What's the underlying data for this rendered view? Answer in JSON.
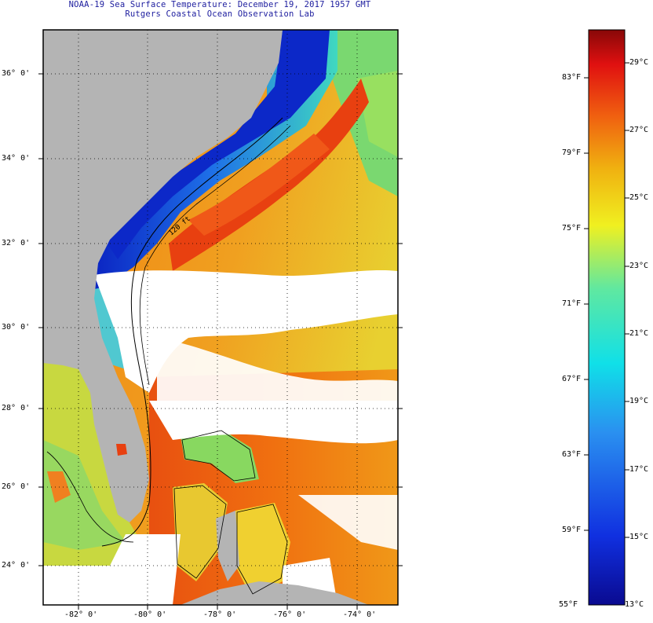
{
  "header": {
    "title_line1": "NOAA-19 Sea Surface Temperature:  December 19, 2017 1957 GMT",
    "title_line2": "Rutgers Coastal Ocean Observation Lab"
  },
  "map": {
    "lat_labels": [
      "36° 0'",
      "34° 0'",
      "32° 0'",
      "30° 0'",
      "28° 0'",
      "26° 0'",
      "24° 0'"
    ],
    "lon_labels": [
      "-82° 0'",
      "-80° 0'",
      "-78° 0'",
      "-76° 0'",
      "-74° 0'"
    ],
    "contour_label": "120 ft",
    "colors": {
      "land": "#b4b4b4",
      "cloud": "#ffffff",
      "cold": "#1030d0",
      "warm": "#e83010"
    }
  },
  "colorbar": {
    "fahrenheit_labels": [
      "83°F",
      "79°F",
      "75°F",
      "71°F",
      "67°F",
      "63°F",
      "59°F",
      "55°F"
    ],
    "celsius_labels": [
      "29°C",
      "27°C",
      "25°C",
      "23°C",
      "21°C",
      "19°C",
      "17°C",
      "15°C",
      "13°C"
    ],
    "range_f": [
      55,
      86
    ],
    "range_c": [
      13,
      30
    ]
  }
}
